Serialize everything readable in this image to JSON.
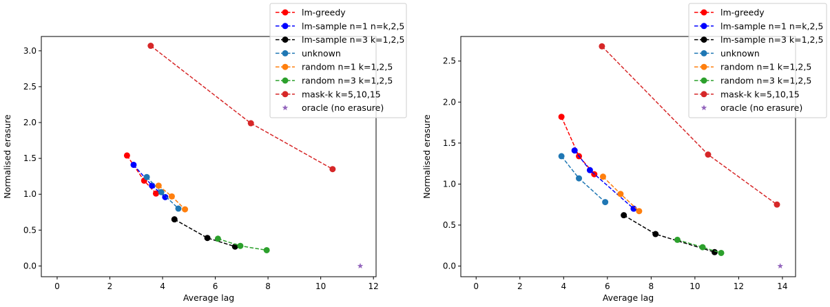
{
  "chart_data": [
    {
      "type": "line",
      "xlabel": "Average lag",
      "ylabel": "Normalised erasure",
      "xlim": [
        -0.6,
        12.1
      ],
      "ylim": [
        -0.15,
        3.2
      ],
      "xticks": [
        0,
        2,
        4,
        6,
        8,
        10,
        12
      ],
      "yticks": [
        0.0,
        0.5,
        1.0,
        1.5,
        2.0,
        2.5,
        3.0
      ],
      "tick_labels_x": [
        "0",
        "2",
        "4",
        "6",
        "8",
        "10",
        "12"
      ],
      "tick_labels_y": [
        "0.0",
        "0.5",
        "1.0",
        "1.5",
        "2.0",
        "2.5",
        "3.0"
      ],
      "grid": false,
      "legend_position": "top-right",
      "series": [
        {
          "name": "lm-greedy",
          "color": "#ff0000",
          "marker": "circle",
          "linestyle": "dashed",
          "x": [
            2.65,
            3.3,
            3.75
          ],
          "y": [
            1.54,
            1.19,
            1.01
          ]
        },
        {
          "name": "lm-sample n=1 n=k,2,5",
          "color": "#0000ff",
          "marker": "circle",
          "linestyle": "dashed",
          "x": [
            2.9,
            3.6,
            4.1
          ],
          "y": [
            1.41,
            1.12,
            0.96
          ]
        },
        {
          "name": "lm-sample n=3 k=1,2,5",
          "color": "#000000",
          "marker": "circle",
          "linestyle": "dashed",
          "x": [
            4.45,
            5.7,
            6.75
          ],
          "y": [
            0.65,
            0.39,
            0.27
          ]
        },
        {
          "name": "unknown",
          "color": "#1f77b4",
          "marker": "circle",
          "linestyle": "dashed",
          "x": [
            3.4,
            3.95,
            4.6
          ],
          "y": [
            1.24,
            1.03,
            0.8
          ]
        },
        {
          "name": "random n=1 k=1,2,5",
          "color": "#ff7f0e",
          "marker": "circle",
          "linestyle": "dashed",
          "x": [
            3.85,
            4.35,
            4.85
          ],
          "y": [
            1.12,
            0.97,
            0.79
          ]
        },
        {
          "name": "random n=3 k=1,2,5",
          "color": "#2ca02c",
          "marker": "circle",
          "linestyle": "dashed",
          "x": [
            6.1,
            6.95,
            7.95
          ],
          "y": [
            0.38,
            0.28,
            0.22
          ]
        },
        {
          "name": "mask-k k=5,10,15",
          "color": "#d62728",
          "marker": "circle",
          "linestyle": "dashed",
          "x": [
            3.55,
            7.35,
            10.45
          ],
          "y": [
            3.07,
            1.99,
            1.35
          ]
        },
        {
          "name": "oracle (no erasure)",
          "color": "#9467bd",
          "marker": "star",
          "linestyle": "none",
          "x": [
            11.5
          ],
          "y": [
            0.0
          ]
        }
      ]
    },
    {
      "type": "line",
      "xlabel": "Average lag",
      "ylabel": "Normalised erasure",
      "xlim": [
        -0.7,
        14.6
      ],
      "ylim": [
        -0.13,
        2.8
      ],
      "xticks": [
        0,
        2,
        4,
        6,
        8,
        10,
        12,
        14
      ],
      "yticks": [
        0.0,
        0.5,
        1.0,
        1.5,
        2.0,
        2.5
      ],
      "tick_labels_x": [
        "0",
        "2",
        "4",
        "6",
        "8",
        "10",
        "12",
        "14"
      ],
      "tick_labels_y": [
        "0.0",
        "0.5",
        "1.0",
        "1.5",
        "2.0",
        "2.5"
      ],
      "grid": false,
      "legend_position": "top-right",
      "series": [
        {
          "name": "lm-greedy",
          "color": "#ff0000",
          "marker": "circle",
          "linestyle": "dashed",
          "x": [
            3.9,
            4.7,
            5.4
          ],
          "y": [
            1.82,
            1.34,
            1.12
          ]
        },
        {
          "name": "lm-sample n=1 n=k,2,5",
          "color": "#0000ff",
          "marker": "circle",
          "linestyle": "dashed",
          "x": [
            4.5,
            5.2,
            7.2
          ],
          "y": [
            1.41,
            1.17,
            0.7
          ]
        },
        {
          "name": "lm-sample n=3 k=1,2,5",
          "color": "#000000",
          "marker": "circle",
          "linestyle": "dashed",
          "x": [
            6.75,
            8.2,
            10.9
          ],
          "y": [
            0.62,
            0.39,
            0.17
          ]
        },
        {
          "name": "unknown",
          "color": "#1f77b4",
          "marker": "circle",
          "linestyle": "dashed",
          "x": [
            3.9,
            4.7,
            5.9
          ],
          "y": [
            1.34,
            1.07,
            0.78
          ]
        },
        {
          "name": "random n=1 k=1,2,5",
          "color": "#ff7f0e",
          "marker": "circle",
          "linestyle": "dashed",
          "x": [
            5.8,
            6.6,
            7.45
          ],
          "y": [
            1.09,
            0.88,
            0.67
          ]
        },
        {
          "name": "random n=3 k=1,2,5",
          "color": "#2ca02c",
          "marker": "circle",
          "linestyle": "dashed",
          "x": [
            9.2,
            10.35,
            11.2
          ],
          "y": [
            0.32,
            0.23,
            0.16
          ]
        },
        {
          "name": "mask-k k=5,10,15",
          "color": "#d62728",
          "marker": "circle",
          "linestyle": "dashed",
          "x": [
            5.75,
            10.6,
            13.75
          ],
          "y": [
            2.68,
            1.36,
            0.75
          ]
        },
        {
          "name": "oracle (no erasure)",
          "color": "#9467bd",
          "marker": "star",
          "linestyle": "none",
          "x": [
            13.9
          ],
          "y": [
            0.0
          ]
        }
      ]
    }
  ]
}
